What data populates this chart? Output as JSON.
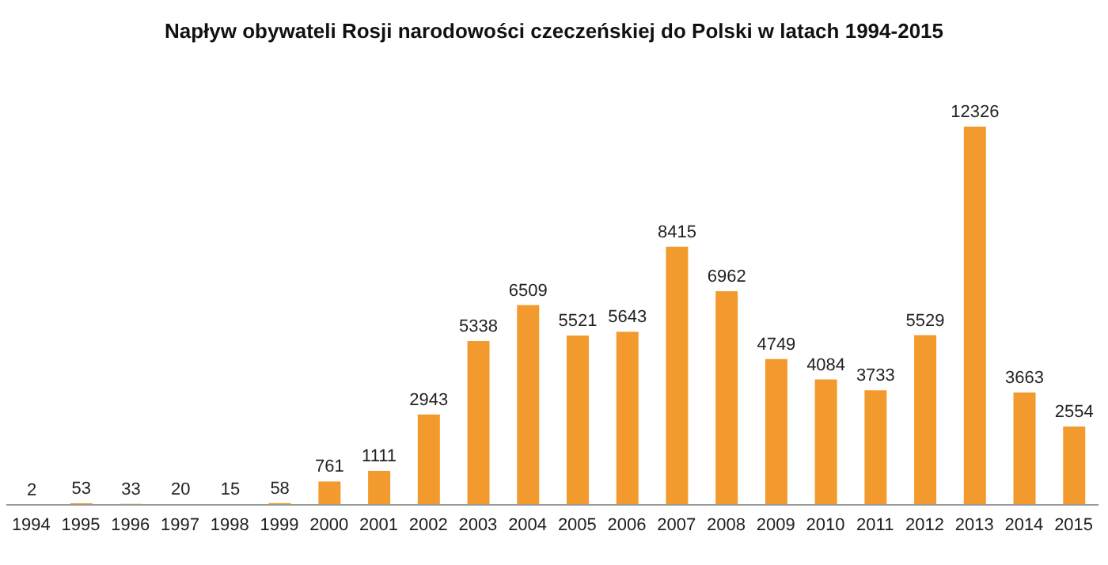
{
  "chart_data": {
    "type": "bar",
    "title": "Napływ obywateli Rosji narodowości czeczeńskiej do Polski w latach 1994-2015",
    "categories": [
      "1994",
      "1995",
      "1996",
      "1997",
      "1998",
      "1999",
      "2000",
      "2001",
      "2002",
      "2003",
      "2004",
      "2005",
      "2006",
      "2007",
      "2008",
      "2009",
      "2010",
      "2011",
      "2012",
      "2013",
      "2014",
      "2015"
    ],
    "values": [
      2,
      53,
      33,
      20,
      15,
      58,
      761,
      1111,
      2943,
      5338,
      6509,
      5521,
      5643,
      8415,
      6962,
      4749,
      4084,
      3733,
      5529,
      12326,
      3663,
      2554
    ],
    "color": "#f39a2e",
    "data_labels": true,
    "grid": false,
    "legend": false
  }
}
